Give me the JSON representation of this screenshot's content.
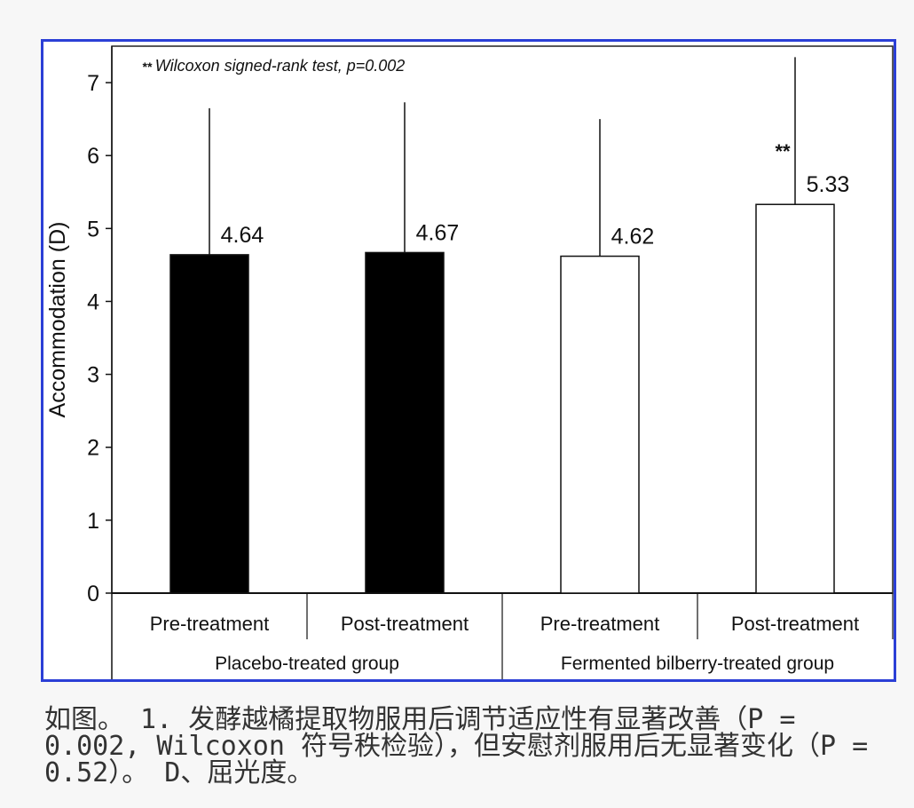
{
  "chart_data": {
    "type": "bar",
    "categories": [
      "Pre-treatment",
      "Post-treatment",
      "Pre-treatment",
      "Post-treatment"
    ],
    "groups": [
      {
        "label": "Placebo-treated group",
        "categories": [
          "Pre-treatment",
          "Post-treatment"
        ]
      },
      {
        "label": "Fermented bilberry-treated group",
        "categories": [
          "Pre-treatment",
          "Post-treatment"
        ]
      }
    ],
    "values": [
      4.64,
      4.67,
      4.62,
      5.33
    ],
    "value_labels": [
      "4.64",
      "4.67",
      "4.62",
      "5.33"
    ],
    "error_upper": [
      6.65,
      6.73,
      6.5,
      7.35
    ],
    "bar_colors": [
      "#000000",
      "#000000",
      "#ffffff",
      "#ffffff"
    ],
    "significance": [
      "",
      "",
      "",
      "**"
    ],
    "annotation": {
      "marker": "**",
      "text": "Wilcoxon signed-rank test, p=0.002"
    },
    "ylabel": "Accommodation (D)",
    "xlabel": "",
    "ylim": [
      0,
      7.5
    ],
    "yticks": [
      "0",
      "1",
      "2",
      "3",
      "4",
      "5",
      "6",
      "7"
    ],
    "grid": false
  },
  "caption": {
    "text": "如图。 1. 发酵越橘提取物服用后调节适应性有显著改善（P = 0.002, Wilcoxon 符号秩检验），但安慰剂服用后无显著变化（P = 0.52）。 D、屈光度。"
  },
  "colors": {
    "frame_border": "#2b3fd6",
    "bar_fill_placebo": "#000000",
    "bar_fill_bilberry": "#ffffff"
  }
}
